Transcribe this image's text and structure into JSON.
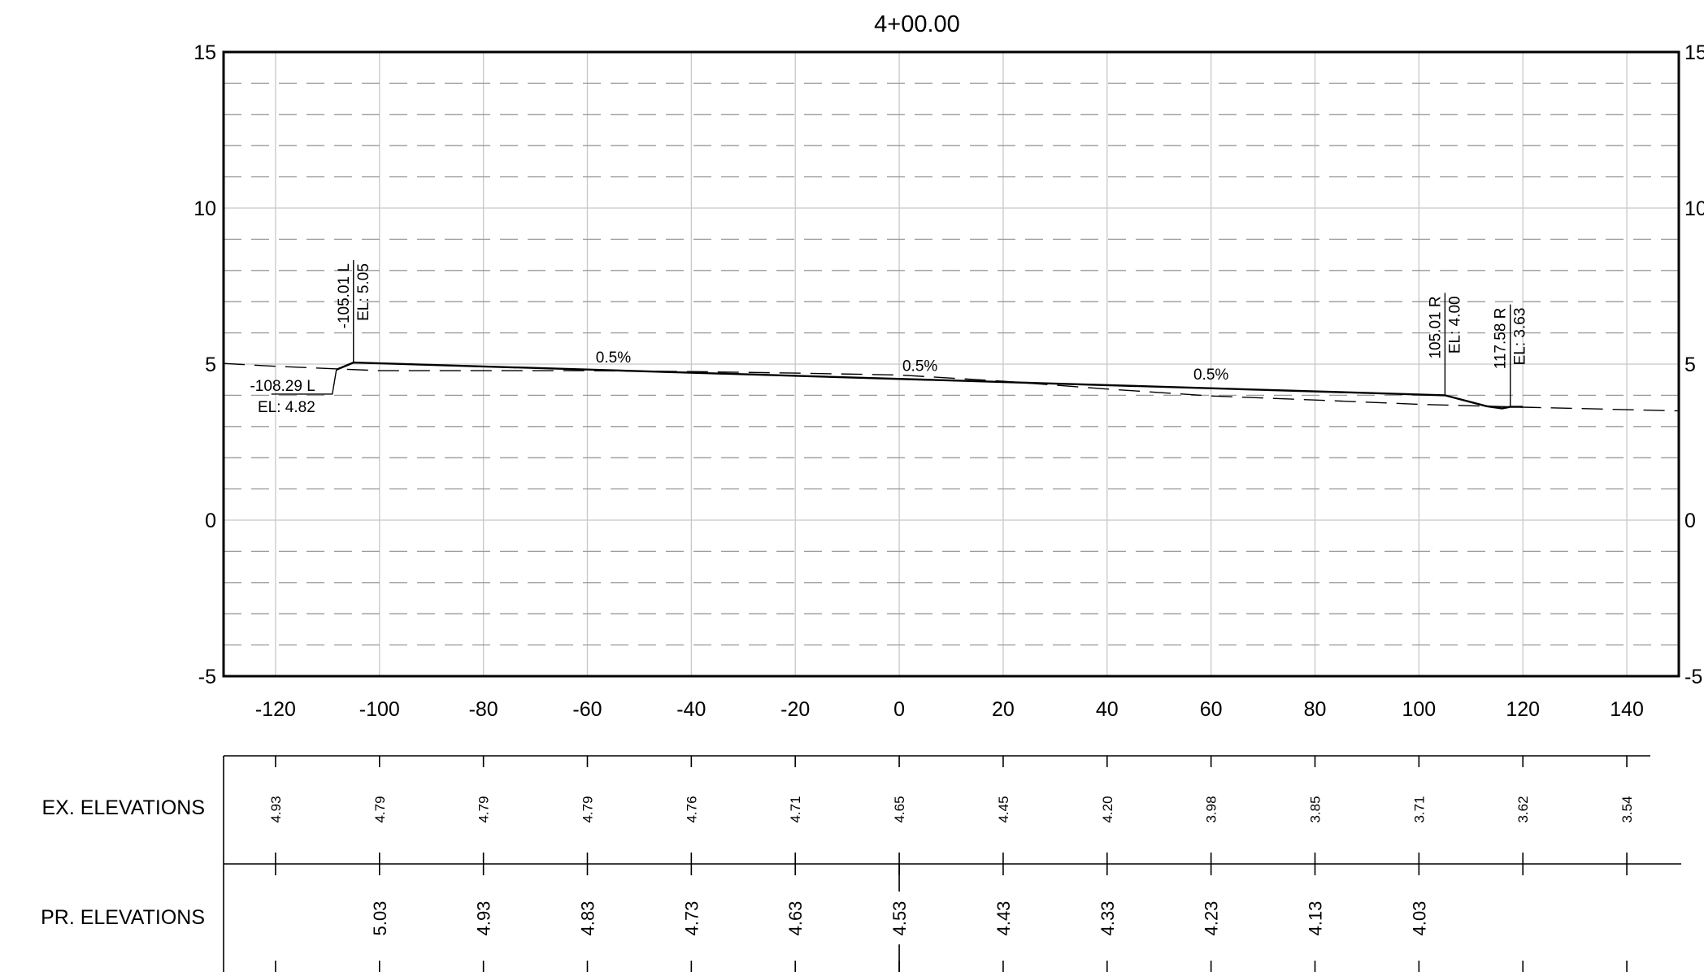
{
  "title": "4+00.00",
  "chart_data": {
    "type": "line",
    "title": "4+00.00",
    "xlim": [
      -130,
      150
    ],
    "ylim": [
      -5,
      15
    ],
    "x_ticks": [
      -120,
      -100,
      -80,
      -60,
      -40,
      -20,
      0,
      20,
      40,
      60,
      80,
      100,
      120,
      140
    ],
    "y_ticks": [
      15,
      10,
      5,
      0,
      -5
    ],
    "right_y_ticks": [
      "15",
      "10",
      "5",
      "0",
      "-5"
    ],
    "grid": true,
    "series": [
      {
        "key": "proposed",
        "points": [
          [
            -108.29,
            4.82
          ],
          [
            -105.01,
            5.05
          ],
          [
            105.01,
            4.0
          ],
          [
            113.0,
            3.65
          ],
          [
            116.0,
            3.58
          ],
          [
            117.58,
            3.63
          ],
          [
            120.0,
            3.63
          ]
        ]
      },
      {
        "key": "existing",
        "points": [
          [
            -130.0,
            5.02
          ],
          [
            -120.0,
            4.93
          ],
          [
            -100.0,
            4.79
          ],
          [
            -60.0,
            4.79
          ],
          [
            -40.0,
            4.76
          ],
          [
            -20.0,
            4.71
          ],
          [
            0.0,
            4.65
          ],
          [
            20.0,
            4.45
          ],
          [
            40.0,
            4.2
          ],
          [
            60.0,
            3.98
          ],
          [
            80.0,
            3.85
          ],
          [
            100.0,
            3.71
          ],
          [
            120.0,
            3.62
          ],
          [
            150.0,
            3.5
          ]
        ]
      }
    ],
    "slope_labels": [
      {
        "text": "0.5%",
        "x": -55,
        "y": 4.9
      },
      {
        "text": "0.5%",
        "x": 4,
        "y": 4.62
      },
      {
        "text": "0.5%",
        "x": 60,
        "y": 4.35
      }
    ],
    "point_labels": [
      {
        "offset": "-105.01 L",
        "elevation": "EL: 5.05",
        "x": -105.01,
        "y": 5.05,
        "style": "vertical"
      },
      {
        "offset": "-108.29 L",
        "elevation": "EL: 4.82",
        "x": -108.29,
        "y": 4.82,
        "style": "horizontal"
      },
      {
        "offset": "105.01 R",
        "elevation": "EL: 4.00",
        "x": 105.01,
        "y": 4.0,
        "style": "vertical"
      },
      {
        "offset": "117.58 R",
        "elevation": "EL: 3.63",
        "x": 117.58,
        "y": 3.63,
        "style": "vertical"
      }
    ]
  },
  "table": {
    "rows": [
      {
        "label": "EX. ELEVATIONS",
        "stations": [
          -120,
          -100,
          -80,
          -60,
          -40,
          -20,
          0,
          20,
          40,
          60,
          80,
          100,
          120,
          140
        ],
        "values": [
          "4.93",
          "4.79",
          "4.79",
          "4.79",
          "4.76",
          "4.71",
          "4.65",
          "4.45",
          "4.20",
          "3.98",
          "3.85",
          "3.71",
          "3.62",
          "3.54"
        ]
      },
      {
        "label": "PR. ELEVATIONS",
        "stations": [
          -100,
          -80,
          -60,
          -40,
          -20,
          0,
          20,
          40,
          60,
          80,
          100
        ],
        "values": [
          "5.03",
          "4.93",
          "4.83",
          "4.73",
          "4.63",
          "4.53",
          "4.43",
          "4.33",
          "4.23",
          "4.13",
          "4.03"
        ]
      }
    ]
  }
}
